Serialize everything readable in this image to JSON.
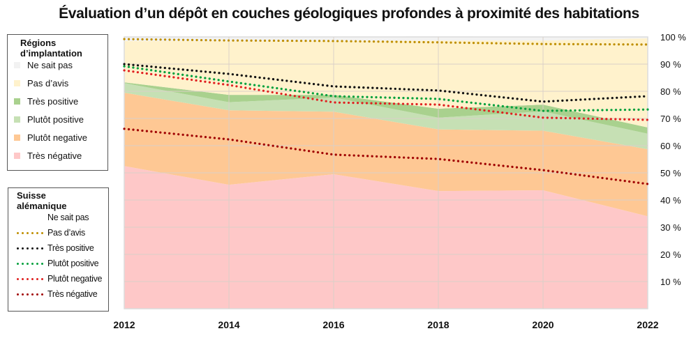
{
  "chart_data": {
    "type": "area",
    "title": "Évaluation d’un dépôt en couches géologiques profondes à proximité des habitations",
    "xlabel": "",
    "ylabel": "",
    "x": [
      2012,
      2014,
      2016,
      2018,
      2020,
      2022
    ],
    "x_tick_labels": [
      "2012",
      "2014",
      "2016",
      "2018",
      "2020",
      "2022"
    ],
    "ylim": [
      0,
      100
    ],
    "y_ticks": [
      10,
      20,
      30,
      40,
      50,
      60,
      70,
      80,
      90,
      100
    ],
    "y_tick_labels": [
      "10 %",
      "20 %",
      "30 %",
      "40 %",
      "50 %",
      "60 %",
      "70 %",
      "80 %",
      "90 %",
      "100 %"
    ],
    "y_axis_position": "right",
    "grid": true,
    "stacked_areas": {
      "legend_title": "Régions d’implantation",
      "legend_placement": "top-left",
      "series": [
        {
          "name": "Très négative",
          "color": "#fec8c8",
          "values": [
            52.5,
            45.6,
            49.5,
            43.3,
            43.6,
            34.0
          ]
        },
        {
          "name": "Plutôt negative",
          "color": "#fec894",
          "values": [
            27.0,
            27.4,
            23.0,
            22.7,
            21.9,
            24.7
          ]
        },
        {
          "name": "Plutôt positive",
          "color": "#c6e0b4",
          "values": [
            3.5,
            3.0,
            5.2,
            4.3,
            7.1,
            5.7
          ]
        },
        {
          "name": "Très positive",
          "color": "#a9d18e",
          "values": [
            0.3,
            2.7,
            1.0,
            3.3,
            2.5,
            2.3
          ]
        },
        {
          "name": "Pas d’avis",
          "color": "#fff2cc",
          "values": [
            15.2,
            19.8,
            19.8,
            25.1,
            23.6,
            32.8
          ]
        },
        {
          "name": "Ne sait pas",
          "color": "#f2f2f2",
          "values": [
            1.5,
            1.5,
            1.5,
            1.6,
            1.3,
            0.5
          ]
        }
      ]
    },
    "cumulative_lines": {
      "legend_title": "Suisse alémanique",
      "legend_placement": "bottom-left",
      "series": [
        {
          "name": "Ne sait pas",
          "color": "#ffffff",
          "values": null
        },
        {
          "name": "Pas d’avis",
          "color": "#bf8f00",
          "values": [
            99.2,
            98.7,
            98.5,
            98.0,
            97.4,
            97.2
          ]
        },
        {
          "name": "Très positive",
          "color": "#111111",
          "values": [
            90.0,
            86.4,
            81.8,
            80.3,
            76.2,
            78.2
          ]
        },
        {
          "name": "Plutôt positive",
          "color": "#00a03c",
          "values": [
            89.2,
            83.6,
            78.2,
            77.2,
            72.8,
            73.3
          ]
        },
        {
          "name": "Plutôt negative",
          "color": "#e02020",
          "values": [
            87.7,
            82.3,
            75.9,
            75.1,
            70.3,
            69.5
          ]
        },
        {
          "name": "Très négative",
          "color": "#a00000",
          "values": [
            66.2,
            62.3,
            56.7,
            55.1,
            51.0,
            45.9
          ]
        }
      ]
    }
  },
  "legends": {
    "areas_title": "Régions d’implantation",
    "areas_items": [
      "Ne sait pas",
      "Pas d’avis",
      "Très positive",
      "Plutôt positive",
      "Plutôt negative",
      "Très négative"
    ],
    "lines_title": "Suisse alémanique",
    "lines_items": [
      "Ne sait pas",
      "Pas d’avis",
      "Très positive",
      "Plutôt positive",
      "Plutôt negative",
      "Très négative"
    ]
  }
}
